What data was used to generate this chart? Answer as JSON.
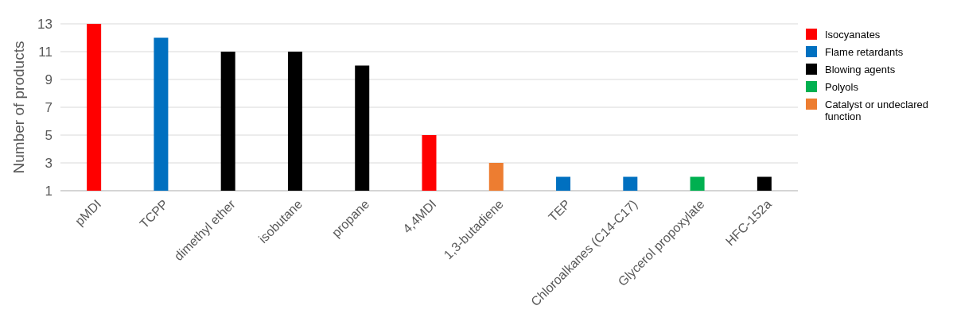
{
  "chart_data": {
    "type": "bar",
    "ylabel": "Number of products",
    "categories": [
      "pMDI",
      "TCPP",
      "dimethyl ether",
      "isobutane",
      "propane",
      "4,4MDI",
      "1,3-butadiene",
      "TEP",
      "Chloroalkanes (C14-C17)",
      "Glycerol propoxylate",
      "HFC-152a"
    ],
    "series": [
      {
        "name": "Isocyanates",
        "color": "#ff0000",
        "values": [
          13,
          null,
          null,
          null,
          null,
          5,
          null,
          null,
          null,
          null,
          null
        ]
      },
      {
        "name": "Flame retardants",
        "color": "#0070c0",
        "values": [
          null,
          12,
          null,
          null,
          null,
          null,
          null,
          2,
          2,
          null,
          null
        ]
      },
      {
        "name": "Blowing agents",
        "color": "#000000",
        "values": [
          null,
          null,
          11,
          11,
          10,
          null,
          null,
          null,
          null,
          null,
          2
        ]
      },
      {
        "name": "Polyols",
        "color": "#00b050",
        "values": [
          null,
          null,
          null,
          null,
          null,
          null,
          null,
          null,
          null,
          2,
          null
        ]
      },
      {
        "name": "Catalyst or undeclared function",
        "color": "#ed7d31",
        "values": [
          null,
          null,
          null,
          null,
          null,
          null,
          3,
          null,
          null,
          null,
          null
        ]
      }
    ],
    "ylim": [
      1,
      13
    ],
    "yticks": [
      1,
      3,
      5,
      7,
      9,
      11,
      13
    ],
    "grid": "y",
    "legend": "right"
  }
}
